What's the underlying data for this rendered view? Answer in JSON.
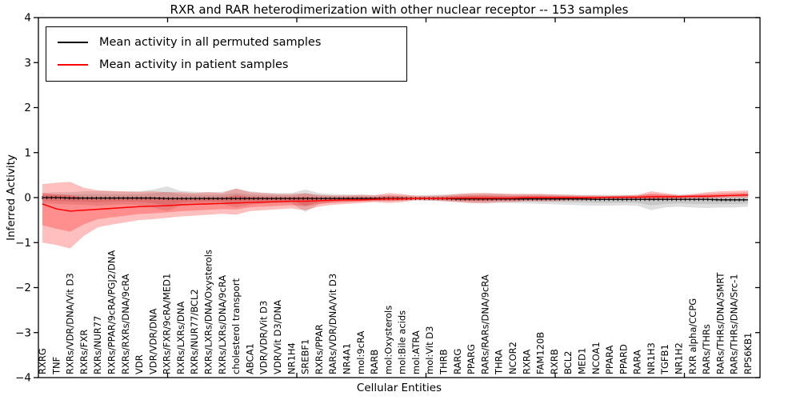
{
  "chart_data": {
    "type": "line",
    "title": "RXR and RAR heterodimerization with other nuclear receptor -- 153 samples",
    "xlabel": "Cellular Entities",
    "ylabel": "Inferred Activity",
    "ylim": [
      -4,
      4
    ],
    "yticks": [
      4,
      3,
      2,
      1,
      0,
      -1,
      -2,
      -3,
      -4
    ],
    "grid": false,
    "legend_position": "upper left",
    "categories": [
      "RXRG",
      "TNF",
      "RXRs/VDR/DNA/Vit D3",
      "RXRs/FXR",
      "RXRs/NUR77",
      "RXRs/PPAR/9cRA/PGJ2/DNA",
      "RXRs/RXRs/DNA/9cRA",
      "VDR",
      "VDR/VDR/DNA",
      "RXRs/FXR/9cRA/MED1",
      "RXRs/LXRs/DNA",
      "RXRs/NUR77/BCL2",
      "RXRs/LXRs/DNA/Oxysterols",
      "RXRs/LXRs/DNA/9cRA",
      "cholesterol transport",
      "ABCA1",
      "VDR/VDR/Vit D3",
      "VDR/Vit D3/DNA",
      "NR1H4",
      "SREBF1",
      "RXRs/PPAR",
      "RARs/VDR/DNA/Vit D3",
      "NR4A1",
      "mol:9cRA",
      "RARB",
      "mol:Oxysterols",
      "mol:Bile acids",
      "mol:ATRA",
      "mol:Vit D3",
      "THRB",
      "RARG",
      "PPARG",
      "RARs/RARs/DNA/9cRA",
      "THRA",
      "NCOR2",
      "RXRA",
      "FAM120B",
      "RXRB",
      "BCL2",
      "MED1",
      "NCOA1",
      "PPARA",
      "PPARD",
      "RARA",
      "NR1H3",
      "TGFB1",
      "NR1H2",
      "RXR alpha/CCPG",
      "RARs/THRs",
      "RARs/THRs/DNA/SMRT",
      "RARs/THRs/DNA/Src-1",
      "RPS6KB1"
    ],
    "series": [
      {
        "name": "Mean activity in all permuted samples",
        "color": "#000000",
        "band_color": "#808080",
        "values": [
          0,
          0,
          -0.01,
          -0.01,
          -0.01,
          -0.01,
          -0.01,
          -0.01,
          -0.01,
          -0.02,
          -0.02,
          -0.02,
          -0.02,
          -0.02,
          -0.02,
          -0.02,
          -0.02,
          -0.02,
          -0.02,
          -0.02,
          -0.02,
          -0.02,
          -0.02,
          -0.02,
          -0.02,
          -0.02,
          -0.02,
          -0.02,
          -0.02,
          -0.02,
          -0.03,
          -0.03,
          -0.03,
          -0.03,
          -0.03,
          -0.03,
          -0.03,
          -0.03,
          -0.03,
          -0.03,
          -0.04,
          -0.04,
          -0.04,
          -0.04,
          -0.04,
          -0.04,
          -0.04,
          -0.04,
          -0.04,
          -0.05,
          -0.05,
          -0.05
        ],
        "band_upper": [
          0.1,
          0.12,
          0.12,
          0.14,
          0.15,
          0.14,
          0.13,
          0.14,
          0.18,
          0.25,
          0.15,
          0.13,
          0.12,
          0.13,
          0.2,
          0.14,
          0.11,
          0.1,
          0.1,
          0.18,
          0.1,
          0.08,
          0.07,
          0.07,
          0.06,
          0.06,
          0.05,
          0.05,
          0.06,
          0.07,
          0.08,
          0.09,
          0.1,
          0.09,
          0.08,
          0.08,
          0.08,
          0.07,
          0.07,
          0.06,
          0.06,
          0.06,
          0.06,
          0.06,
          0.07,
          0.07,
          0.06,
          0.06,
          0.06,
          0.05,
          0.05,
          0.05
        ],
        "band_lower": [
          -0.12,
          -0.14,
          -0.15,
          -0.16,
          -0.18,
          -0.16,
          -0.15,
          -0.16,
          -0.22,
          -0.3,
          -0.18,
          -0.15,
          -0.14,
          -0.15,
          -0.22,
          -0.16,
          -0.13,
          -0.12,
          -0.12,
          -0.32,
          -0.14,
          -0.1,
          -0.09,
          -0.08,
          -0.08,
          -0.07,
          -0.06,
          -0.06,
          -0.07,
          -0.08,
          -0.1,
          -0.12,
          -0.13,
          -0.12,
          -0.12,
          -0.13,
          -0.14,
          -0.15,
          -0.16,
          -0.17,
          -0.18,
          -0.18,
          -0.17,
          -0.18,
          -0.28,
          -0.22,
          -0.2,
          -0.22,
          -0.23,
          -0.22,
          -0.22,
          -0.2
        ]
      },
      {
        "name": "Mean activity in patient samples",
        "color": "#ff0000",
        "band_color": "#ff0000",
        "values": [
          -0.14,
          -0.25,
          -0.3,
          -0.28,
          -0.26,
          -0.24,
          -0.22,
          -0.2,
          -0.19,
          -0.18,
          -0.16,
          -0.15,
          -0.14,
          -0.13,
          -0.12,
          -0.11,
          -0.1,
          -0.09,
          -0.08,
          -0.08,
          -0.07,
          -0.06,
          -0.05,
          -0.05,
          -0.04,
          -0.03,
          -0.03,
          -0.02,
          -0.02,
          -0.02,
          -0.01,
          -0.01,
          -0.01,
          -0.01,
          -0.01,
          0,
          0,
          0,
          0,
          0,
          0,
          0.01,
          0.01,
          0.01,
          0.02,
          0.02,
          0.02,
          0.03,
          0.03,
          0.04,
          0.05,
          0.06
        ],
        "band_upper": [
          0.3,
          0.33,
          0.35,
          0.22,
          0.16,
          0.15,
          0.14,
          0.13,
          0.14,
          0.12,
          0.12,
          0.1,
          0.12,
          0.1,
          0.2,
          0.12,
          0.1,
          0.08,
          0.08,
          0.1,
          0.06,
          0.05,
          0.05,
          0.06,
          0.05,
          0.1,
          0.08,
          0.04,
          0.04,
          0.05,
          0.08,
          0.1,
          0.1,
          0.09,
          0.08,
          0.08,
          0.08,
          0.07,
          0.06,
          0.05,
          0.05,
          0.04,
          0.05,
          0.06,
          0.14,
          0.1,
          0.06,
          0.08,
          0.12,
          0.14,
          0.15,
          0.16
        ],
        "band_lower": [
          -1.0,
          -1.05,
          -1.13,
          -0.85,
          -0.66,
          -0.6,
          -0.55,
          -0.5,
          -0.48,
          -0.45,
          -0.42,
          -0.4,
          -0.38,
          -0.36,
          -0.38,
          -0.3,
          -0.28,
          -0.26,
          -0.24,
          -0.28,
          -0.2,
          -0.16,
          -0.14,
          -0.12,
          -0.1,
          -0.12,
          -0.1,
          -0.06,
          -0.06,
          -0.08,
          -0.1,
          -0.12,
          -0.12,
          -0.1,
          -0.1,
          -0.08,
          -0.08,
          -0.08,
          -0.06,
          -0.06,
          -0.05,
          -0.05,
          -0.04,
          -0.04,
          -0.06,
          -0.04,
          -0.03,
          -0.02,
          -0.02,
          -0.01,
          0,
          0
        ]
      }
    ]
  }
}
